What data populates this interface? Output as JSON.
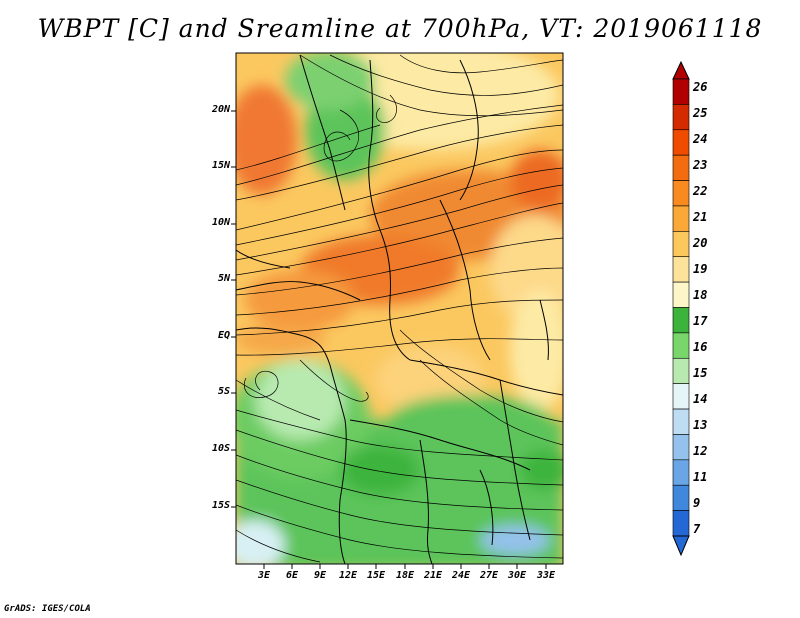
{
  "title": "WBPT [C] and Sreamline at 700hPa, VT: 2019061118",
  "footer": "GrADS: IGES/COLA",
  "lat_ticks": [
    "20N",
    "15N",
    "10N",
    "5N",
    "EQ",
    "5S",
    "10S",
    "15S"
  ],
  "lon_ticks": [
    "3E",
    "6E",
    "9E",
    "12E",
    "15E",
    "18E",
    "21E",
    "24E",
    "27E",
    "30E",
    "33E"
  ],
  "colorbar": {
    "labels": [
      "26",
      "25",
      "24",
      "23",
      "22",
      "21",
      "20",
      "19",
      "18",
      "17",
      "16",
      "15",
      "14",
      "13",
      "12",
      "11",
      "9",
      "7"
    ],
    "colors": [
      "#b00000",
      "#d42a00",
      "#f04c00",
      "#f46c10",
      "#f88a20",
      "#fba838",
      "#fcc85c",
      "#fde39a",
      "#fdf6c8",
      "#3cb43c",
      "#78d66a",
      "#b8eab0",
      "#e6f6f8",
      "#bedcf2",
      "#94c2ec",
      "#6aa6e6",
      "#4088de",
      "#2468d6"
    ]
  }
}
